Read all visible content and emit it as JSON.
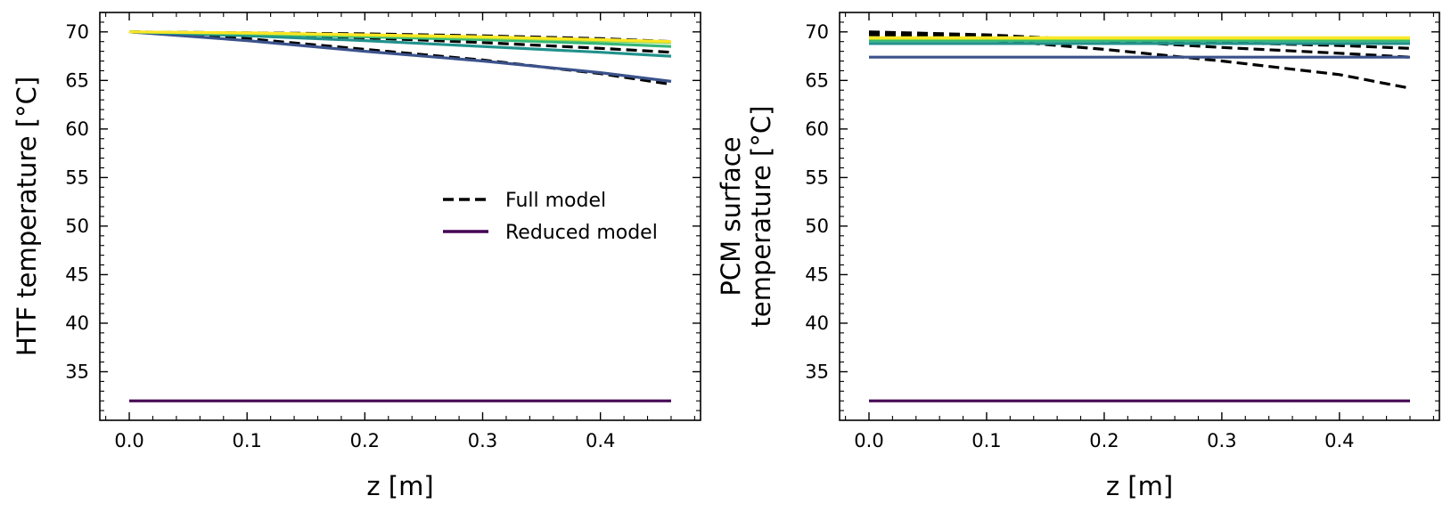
{
  "legend": {
    "full_label": "Full model",
    "reduced_label": "Reduced model",
    "full_color": "#000000",
    "reduced_color": "#440154",
    "placement": "center-right of left panel"
  },
  "chart_data": [
    {
      "type": "line",
      "xlabel": "z [m]",
      "ylabel": "HTF temperature [°C]",
      "xlim": [
        -0.025,
        0.485
      ],
      "ylim": [
        30,
        72
      ],
      "xticks": [
        0.0,
        0.1,
        0.2,
        0.3,
        0.4
      ],
      "xtick_labels": [
        "0.0",
        "0.1",
        "0.2",
        "0.3",
        "0.4"
      ],
      "yticks": [
        35,
        40,
        45,
        50,
        55,
        60,
        65,
        70
      ],
      "ytick_labels": [
        "35",
        "40",
        "45",
        "50",
        "55",
        "60",
        "65",
        "70"
      ],
      "grid": false,
      "legend": true,
      "series": [
        {
          "model": "full",
          "color": "#000000",
          "dashed": true,
          "x": [
            0.0,
            0.1,
            0.2,
            0.3,
            0.4,
            0.46
          ],
          "y": [
            70.0,
            69.9,
            69.8,
            69.6,
            69.3,
            69.0
          ]
        },
        {
          "model": "full",
          "color": "#000000",
          "dashed": true,
          "x": [
            0.0,
            0.1,
            0.2,
            0.3,
            0.4,
            0.46
          ],
          "y": [
            70.0,
            69.8,
            69.4,
            68.9,
            68.3,
            67.9
          ]
        },
        {
          "model": "full",
          "color": "#000000",
          "dashed": true,
          "x": [
            0.0,
            0.1,
            0.2,
            0.3,
            0.4,
            0.46
          ],
          "y": [
            70.0,
            69.3,
            68.2,
            67.1,
            65.7,
            64.6
          ]
        },
        {
          "model": "reduced",
          "color": "#440154",
          "dashed": false,
          "x": [
            0.0,
            0.46
          ],
          "y": [
            32.0,
            32.0
          ]
        },
        {
          "model": "reduced",
          "color": "#3b528b",
          "dashed": false,
          "x": [
            0.0,
            0.1,
            0.2,
            0.3,
            0.4,
            0.46
          ],
          "y": [
            70.0,
            69.1,
            68.0,
            67.0,
            65.8,
            64.9
          ]
        },
        {
          "model": "reduced",
          "color": "#21918c",
          "dashed": false,
          "x": [
            0.0,
            0.1,
            0.2,
            0.3,
            0.4,
            0.46
          ],
          "y": [
            70.0,
            69.6,
            69.1,
            68.5,
            67.9,
            67.5
          ]
        },
        {
          "model": "reduced",
          "color": "#35b779",
          "dashed": false,
          "x": [
            0.0,
            0.1,
            0.2,
            0.3,
            0.4,
            0.46
          ],
          "y": [
            70.0,
            69.8,
            69.5,
            69.2,
            68.8,
            68.5
          ]
        },
        {
          "model": "reduced",
          "color": "#90d743",
          "dashed": false,
          "x": [
            0.0,
            0.1,
            0.2,
            0.3,
            0.4,
            0.46
          ],
          "y": [
            70.0,
            69.85,
            69.65,
            69.4,
            69.1,
            68.9
          ]
        },
        {
          "model": "reduced",
          "color": "#fde725",
          "dashed": false,
          "x": [
            0.0,
            0.1,
            0.2,
            0.3,
            0.4,
            0.46
          ],
          "y": [
            70.0,
            69.9,
            69.7,
            69.5,
            69.2,
            69.0
          ]
        }
      ]
    },
    {
      "type": "line",
      "xlabel": "z [m]",
      "ylabel": "PCM surface\ntemperature [°C]",
      "ylabel_lines": [
        "PCM surface",
        "temperature [°C]"
      ],
      "xlim": [
        -0.025,
        0.485
      ],
      "ylim": [
        30,
        72
      ],
      "xticks": [
        0.0,
        0.1,
        0.2,
        0.3,
        0.4
      ],
      "xtick_labels": [
        "0.0",
        "0.1",
        "0.2",
        "0.3",
        "0.4"
      ],
      "yticks": [
        35,
        40,
        45,
        50,
        55,
        60,
        65,
        70
      ],
      "ytick_labels": [
        "35",
        "40",
        "45",
        "50",
        "55",
        "60",
        "65",
        "70"
      ],
      "grid": false,
      "legend": false,
      "series": [
        {
          "model": "full",
          "color": "#000000",
          "dashed": true,
          "x": [
            0.0,
            0.1,
            0.2,
            0.3,
            0.4,
            0.46
          ],
          "y": [
            70.0,
            69.7,
            69.1,
            68.4,
            67.8,
            67.4
          ]
        },
        {
          "model": "full",
          "color": "#000000",
          "dashed": true,
          "x": [
            0.0,
            0.1,
            0.2,
            0.3,
            0.4,
            0.46
          ],
          "y": [
            69.7,
            69.5,
            69.2,
            68.9,
            68.6,
            68.3
          ]
        },
        {
          "model": "full",
          "color": "#000000",
          "dashed": true,
          "x": [
            0.0,
            0.1,
            0.2,
            0.3,
            0.4,
            0.46
          ],
          "y": [
            69.9,
            69.2,
            68.2,
            67.0,
            65.6,
            64.2
          ]
        },
        {
          "model": "reduced",
          "color": "#440154",
          "dashed": false,
          "x": [
            0.0,
            0.46
          ],
          "y": [
            32.0,
            32.0
          ]
        },
        {
          "model": "reduced",
          "color": "#3b528b",
          "dashed": false,
          "x": [
            0.0,
            0.46
          ],
          "y": [
            67.4,
            67.4
          ]
        },
        {
          "model": "reduced",
          "color": "#21918c",
          "dashed": false,
          "x": [
            0.0,
            0.46
          ],
          "y": [
            68.8,
            68.8
          ]
        },
        {
          "model": "reduced",
          "color": "#35b779",
          "dashed": false,
          "x": [
            0.0,
            0.46
          ],
          "y": [
            69.1,
            69.1
          ]
        },
        {
          "model": "reduced",
          "color": "#90d743",
          "dashed": false,
          "x": [
            0.0,
            0.46
          ],
          "y": [
            69.3,
            69.3
          ]
        },
        {
          "model": "reduced",
          "color": "#fde725",
          "dashed": false,
          "x": [
            0.0,
            0.46
          ],
          "y": [
            69.4,
            69.4
          ]
        }
      ]
    }
  ]
}
